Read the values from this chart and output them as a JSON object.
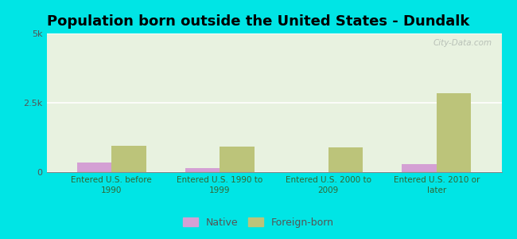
{
  "title": "Population born outside the United States - Dundalk",
  "categories": [
    "Entered U.S. before\n1990",
    "Entered U.S. 1990 to\n1999",
    "Entered U.S. 2000 to\n2009",
    "Entered U.S. 2010 or\nlater"
  ],
  "native_values": [
    350,
    150,
    0,
    280
  ],
  "foreign_born_values": [
    950,
    920,
    880,
    2850
  ],
  "native_color": "#d4a0d4",
  "foreign_born_color": "#bcc47a",
  "background_color": "#00e5e5",
  "plot_bg_color": "#e8f2e0",
  "ylim": [
    0,
    5000
  ],
  "ytick_vals": [
    0,
    2500,
    5000
  ],
  "ytick_labels": [
    "0",
    "2.5k",
    "5k"
  ],
  "legend_native": "Native",
  "legend_foreign": "Foreign-born",
  "title_fontsize": 13,
  "bar_width": 0.32,
  "watermark": "City-Data.com"
}
